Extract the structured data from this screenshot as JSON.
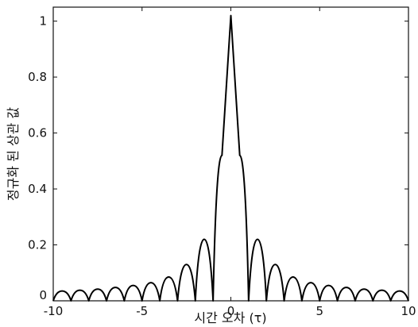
{
  "chart_data": {
    "type": "line",
    "title": "",
    "xlabel": "시간 오차 (τ)",
    "ylabel": "정규화 된 상관 값",
    "xlim": [
      -10,
      10
    ],
    "ylim": [
      0,
      1.05
    ],
    "xticks": [
      -10,
      -5,
      0,
      5,
      10
    ],
    "xtick_labels": [
      "-10",
      "-5",
      "0",
      "5",
      "10"
    ],
    "yticks": [
      0,
      0.2,
      0.4,
      0.6,
      0.8,
      1
    ],
    "ytick_labels": [
      "0",
      "0.2",
      "0.4",
      "0.6",
      "0.8",
      "1"
    ],
    "grid": false,
    "series": [
      {
        "color": "#000000",
        "x": [
          -10,
          -9.5,
          -9,
          -8.5,
          -8,
          -7.5,
          -7,
          -6.5,
          -6,
          -5.5,
          -5,
          -4.5,
          -4,
          -3.5,
          -3,
          -2.5,
          -2,
          -1.5,
          -1,
          -0.5,
          0,
          0.5,
          1,
          1.5,
          2,
          2.5,
          3,
          3.5,
          4,
          4.5,
          5,
          5.5,
          6,
          6.5,
          7,
          7.5,
          8,
          8.5,
          9,
          9.5,
          10
        ],
        "y": [
          0,
          0.035,
          0,
          0.038,
          0,
          0.042,
          0,
          0.048,
          0,
          0.055,
          0,
          0.065,
          0,
          0.085,
          0,
          0.13,
          0,
          0.22,
          0,
          0.52,
          1.02,
          0.52,
          0,
          0.22,
          0,
          0.13,
          0,
          0.085,
          0,
          0.065,
          0,
          0.055,
          0,
          0.048,
          0,
          0.042,
          0,
          0.038,
          0,
          0.035,
          0
        ]
      }
    ]
  }
}
